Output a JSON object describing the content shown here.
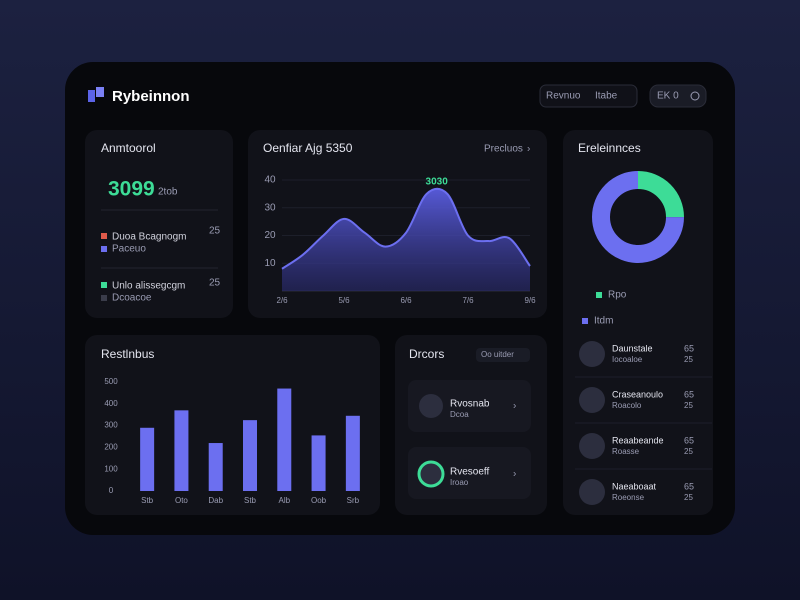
{
  "header": {
    "brand": "Rybeinnon",
    "search": "Revnuo",
    "search_hint": "Itabe",
    "button": "EK 0"
  },
  "summary": {
    "title": "Anmtoorol",
    "value": "3099",
    "unit": "2tob",
    "rows": [
      {
        "label": "Duoa Bcagnogm",
        "sub": "Paceuo",
        "value": "25"
      },
      {
        "label": "Unlo alissegcgm",
        "sub": "Dcoacoe",
        "value": "25"
      }
    ]
  },
  "chart_data": [
    {
      "type": "area",
      "title": "Oenfiar Ajg 5350",
      "link": "Precluos",
      "color": "#6c6ff0",
      "x": [
        0,
        1,
        2,
        3,
        4,
        5,
        6,
        7,
        8,
        9,
        10,
        11,
        12
      ],
      "values": [
        8,
        13,
        20,
        26,
        21,
        16,
        21,
        35,
        35,
        20,
        18,
        19,
        9
      ],
      "xlim": [
        0,
        12
      ],
      "xticks": [
        {
          "value": 0,
          "label": "2/6"
        },
        {
          "value": 3,
          "label": "5/6"
        },
        {
          "value": 6,
          "label": "6/6"
        },
        {
          "value": 9,
          "label": "7/6"
        },
        {
          "value": 12,
          "label": "9/6"
        }
      ],
      "ylim": [
        0,
        40
      ],
      "yticks": [
        10,
        20,
        30,
        40
      ],
      "annotation": "3030",
      "grid": true
    },
    {
      "type": "pie",
      "title": "Ereleinnces",
      "categories": [
        "Rpo",
        "Itdm"
      ],
      "values": [
        25,
        75
      ],
      "colors": [
        "#3ddc97",
        "#6c6ff0"
      ]
    },
    {
      "type": "bar",
      "title": "Restlnbus",
      "color": "#6c6ff0",
      "categories": [
        "Stb",
        "Oto",
        "Dab",
        "Stb",
        "Alb",
        "Oob",
        "Srb"
      ],
      "values": [
        290,
        370,
        220,
        325,
        470,
        255,
        345
      ],
      "ylim": [
        0,
        500
      ],
      "yticks": [
        0,
        100,
        200,
        300,
        400,
        500
      ],
      "grid": false
    }
  ],
  "doctors": {
    "title": "Drcors",
    "filter": "Oo uitder",
    "items": [
      {
        "name": "Rvosnab",
        "sub": "Dcoa"
      },
      {
        "name": "Rvesoeff",
        "sub": "Iroao"
      }
    ]
  },
  "list": {
    "items": [
      {
        "name": "Daunstale",
        "sub": "Iocoaloe",
        "value": "65",
        "sub_value": "25"
      },
      {
        "name": "Craseanoulo",
        "sub": "Roacolo",
        "value": "65",
        "sub_value": "25"
      },
      {
        "name": "Reaabeande",
        "sub": "Roasse",
        "value": "65",
        "sub_value": "25"
      },
      {
        "name": "Naeaboaat",
        "sub": "Roeonse",
        "value": "65",
        "sub_value": "25"
      }
    ]
  }
}
